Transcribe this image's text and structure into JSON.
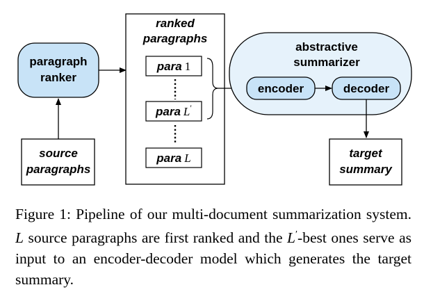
{
  "diagram": {
    "paragraph_ranker": {
      "line1": "paragraph",
      "line2": "ranker"
    },
    "source_paragraphs": {
      "line1": "source",
      "line2": "paragraphs"
    },
    "ranked_paragraphs": {
      "title_line1": "ranked",
      "title_line2": "paragraphs",
      "items": [
        {
          "word": "para",
          "index": "1"
        },
        {
          "word": "para",
          "index": "L",
          "prime": "′"
        },
        {
          "word": "para",
          "index": "L"
        }
      ]
    },
    "abstractive_summarizer": {
      "line1": "abstractive",
      "line2": "summarizer"
    },
    "encoder": "encoder",
    "decoder": "decoder",
    "target_summary": {
      "line1": "target",
      "line2": "summary"
    },
    "colors": {
      "node_fill": "#c8e3f7",
      "stroke": "#000000"
    }
  },
  "caption": {
    "label": "Figure 1:",
    "seg1": " Pipeline of our multi-document summarization system. ",
    "var_L": "L",
    "seg2": " source paragraphs are first ranked and the ",
    "var_L2": "L",
    "prime": "′",
    "seg3": "-best ones serve as input to an encoder-decoder model which generates the target summary."
  }
}
